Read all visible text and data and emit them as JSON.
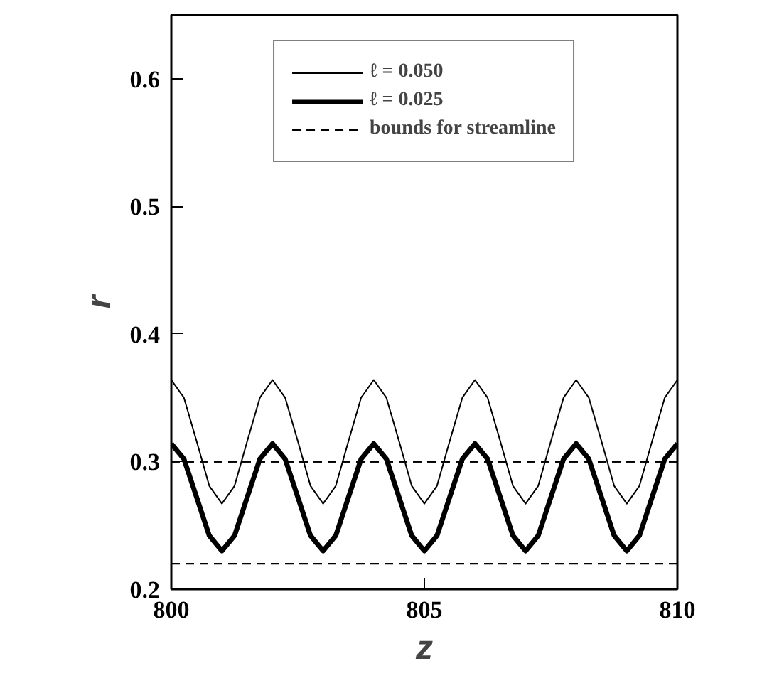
{
  "chart_data": {
    "type": "line",
    "xlabel": "z",
    "ylabel": "r",
    "x": [
      800,
      800.25,
      800.5,
      800.75,
      801,
      801.25,
      801.5,
      801.75,
      802,
      802.25,
      802.5,
      802.75,
      803,
      803.25,
      803.5,
      803.75,
      804,
      804.25,
      804.5,
      804.75,
      805,
      805.25,
      805.5,
      805.75,
      806,
      806.25,
      806.5,
      806.75,
      807,
      807.25,
      807.5,
      807.75,
      808,
      808.25,
      808.5,
      808.75,
      809,
      809.25,
      809.5,
      809.75,
      810
    ],
    "series": [
      {
        "name": "ℓ = 0.050",
        "color": "#000000",
        "values": [
          0.364,
          0.35,
          0.316,
          0.281,
          0.267,
          0.281,
          0.316,
          0.35,
          0.364,
          0.35,
          0.316,
          0.281,
          0.267,
          0.281,
          0.316,
          0.35,
          0.364,
          0.35,
          0.316,
          0.281,
          0.267,
          0.281,
          0.316,
          0.35,
          0.364,
          0.35,
          0.316,
          0.281,
          0.267,
          0.281,
          0.316,
          0.35,
          0.364,
          0.35,
          0.316,
          0.281,
          0.267,
          0.281,
          0.316,
          0.35,
          0.364
        ]
      },
      {
        "name": "ℓ = 0.025",
        "color": "#000000",
        "values": [
          0.314,
          0.302,
          0.272,
          0.242,
          0.23,
          0.242,
          0.272,
          0.302,
          0.314,
          0.302,
          0.272,
          0.242,
          0.23,
          0.242,
          0.272,
          0.302,
          0.314,
          0.302,
          0.272,
          0.242,
          0.23,
          0.242,
          0.272,
          0.302,
          0.314,
          0.302,
          0.272,
          0.242,
          0.23,
          0.242,
          0.272,
          0.302,
          0.314,
          0.302,
          0.272,
          0.242,
          0.23,
          0.242,
          0.272,
          0.302,
          0.314
        ]
      }
    ],
    "ref_lines": [
      {
        "axis": "y",
        "value": 0.3,
        "label": "bounds for streamline",
        "color": "#000000",
        "line_style": "dashed"
      },
      {
        "axis": "y",
        "value": 0.22,
        "label": null,
        "color": "#000000",
        "line_style": "dashed"
      }
    ],
    "xlim": [
      800,
      810
    ],
    "xticks": [
      800,
      805,
      810
    ],
    "ylim": [
      0.2,
      0.65
    ],
    "yticks": [
      0.2,
      0.3,
      0.4,
      0.5,
      0.6
    ],
    "grid": false,
    "legend": "top",
    "line_style": "solid",
    "marker": "none"
  }
}
